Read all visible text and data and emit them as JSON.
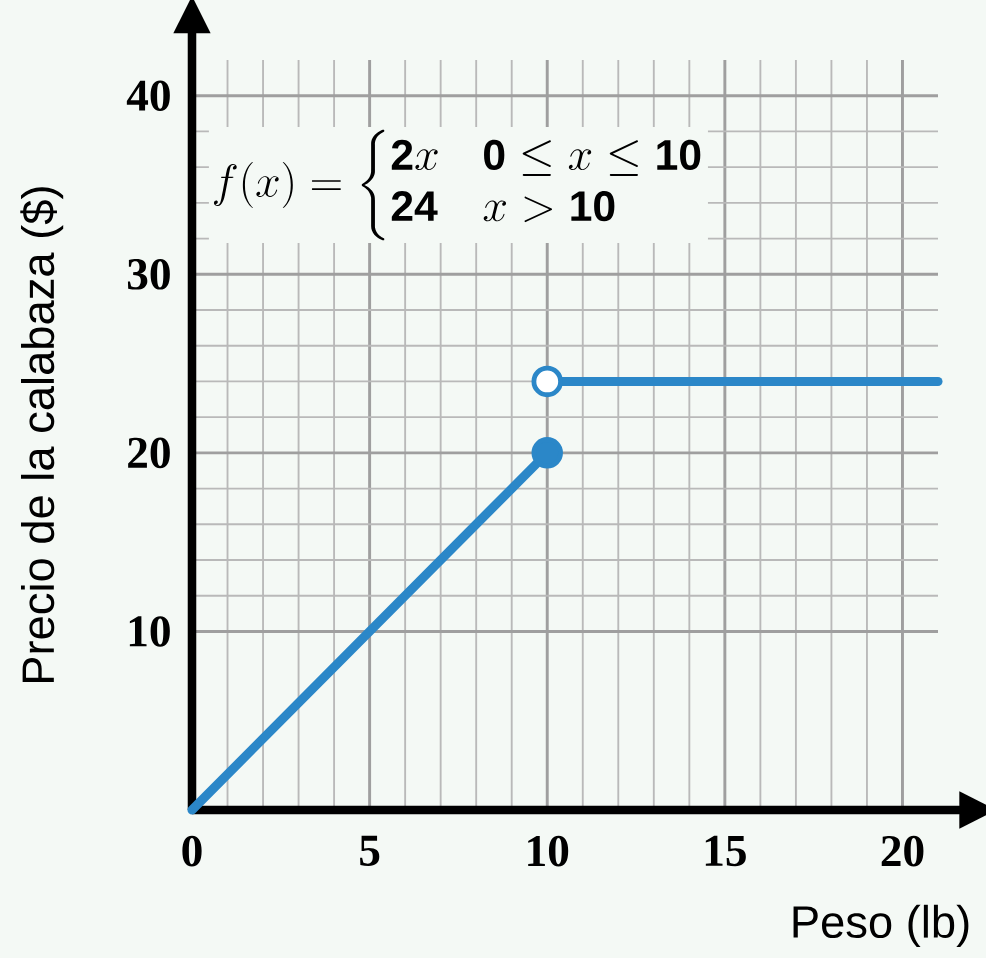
{
  "chart_data": {
    "type": "line",
    "xlabel": "Peso (lb)",
    "ylabel": "Precio de la calabaza ($)",
    "annotations": [
      "f(x)=\\begin{cases}\\mathbf{2}x & \\mathbf{0}\\le x\\le \\mathbf{10}\\\\ \\mathbf{24} & x>\\mathbf{10}\\end{cases}"
    ],
    "xlim": [
      0,
      21
    ],
    "ylim": [
      0,
      42
    ],
    "xticks": [
      0,
      5,
      10,
      15,
      20
    ],
    "yticks": [
      10,
      20,
      30,
      40
    ],
    "grid": true,
    "line_style": "solid",
    "series": [
      {
        "x": [
          0,
          10
        ],
        "values": [
          0,
          20
        ],
        "color": "#2b87c8",
        "marker": "none"
      },
      {
        "x": [
          10,
          21
        ],
        "values": [
          24,
          24
        ],
        "color": "#2b87c8",
        "marker": "none"
      },
      {
        "type": "scatter",
        "x": [
          10
        ],
        "values": [
          20
        ],
        "color": "#2b87c8",
        "marker": "circle"
      },
      {
        "type": "scatter",
        "x": [
          10
        ],
        "values": [
          24
        ],
        "color": "#ffffff",
        "marker": "circle"
      }
    ]
  }
}
